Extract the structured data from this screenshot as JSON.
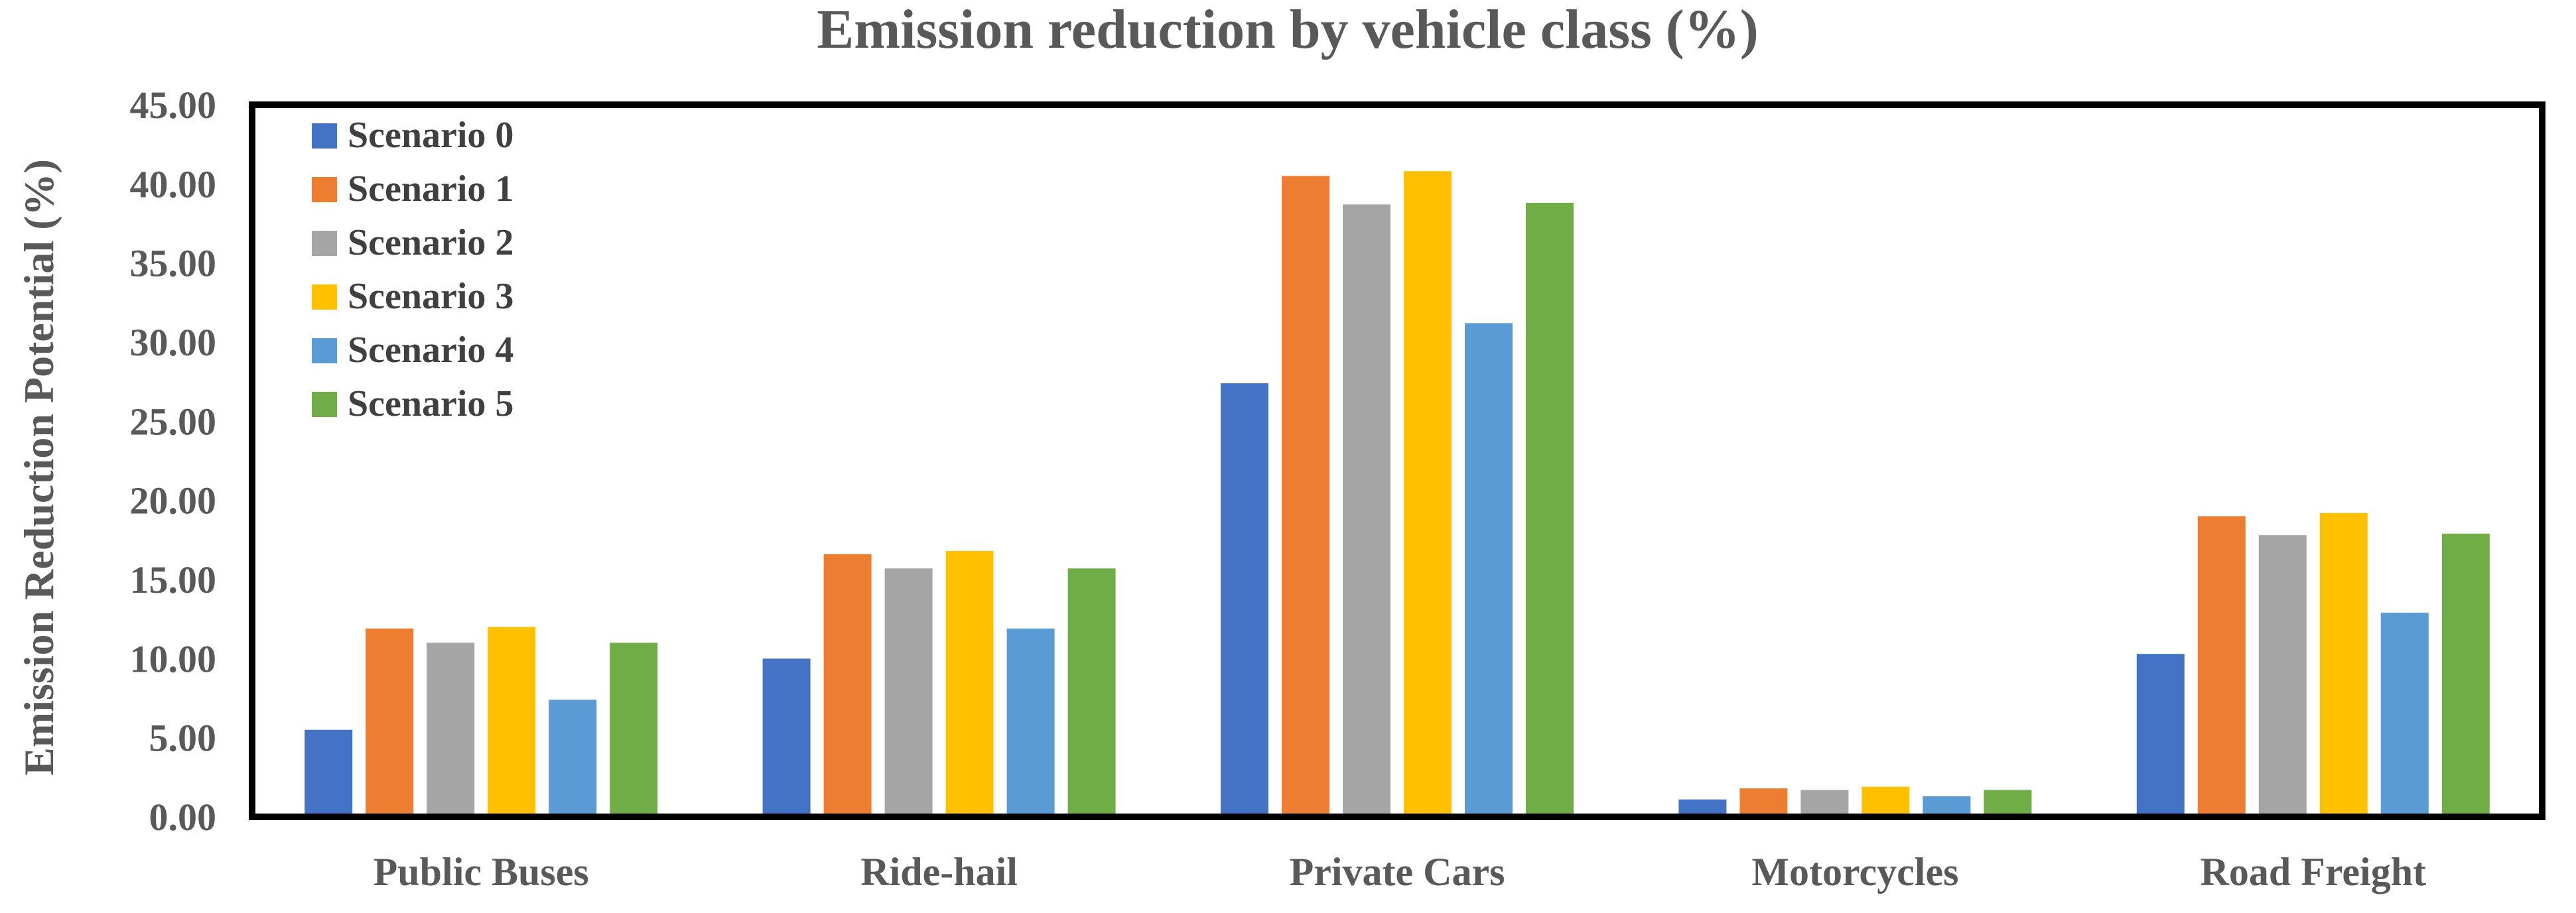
{
  "chart_data": {
    "type": "bar",
    "title": "Emission reduction by vehicle class (%)",
    "xlabel": "",
    "ylabel": "Emission Reduction Potential (%)",
    "ylim": [
      0,
      45
    ],
    "yticks": [
      "0.00",
      "5.00",
      "10.00",
      "15.00",
      "20.00",
      "25.00",
      "30.00",
      "35.00",
      "40.00",
      "45.00"
    ],
    "grid": false,
    "legend_position": "top-left",
    "categories": [
      "Public Buses",
      "Ride-hail",
      "Private Cars",
      "Motorcycles",
      "Road Freight"
    ],
    "series": [
      {
        "name": "Scenario 0",
        "color": "#4472C4",
        "values": [
          5.5,
          10.0,
          27.4,
          1.1,
          10.3
        ]
      },
      {
        "name": "Scenario 1",
        "color": "#ED7D31",
        "values": [
          11.9,
          16.6,
          40.5,
          1.8,
          19.0
        ]
      },
      {
        "name": "Scenario 2",
        "color": "#A5A5A5",
        "values": [
          11.0,
          15.7,
          38.7,
          1.7,
          17.8
        ]
      },
      {
        "name": "Scenario 3",
        "color": "#FFC000",
        "values": [
          12.0,
          16.8,
          40.8,
          1.9,
          19.2
        ]
      },
      {
        "name": "Scenario 4",
        "color": "#5B9BD5",
        "values": [
          7.4,
          11.9,
          31.2,
          1.3,
          12.9
        ]
      },
      {
        "name": "Scenario 5",
        "color": "#70AD47",
        "values": [
          11.0,
          15.7,
          38.8,
          1.7,
          17.9
        ]
      }
    ]
  }
}
